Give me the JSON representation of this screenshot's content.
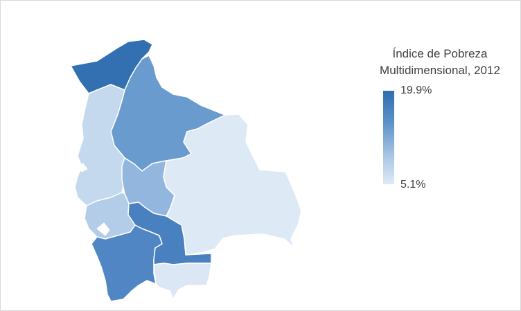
{
  "legend": {
    "title_line1": "Índice de Pobreza",
    "title_line2": "Multidimensional, 2012",
    "max_label": "19.9%",
    "min_label": "5.1%",
    "color_max": "#2e6db0",
    "color_min": "#deeaf6"
  },
  "regions": [
    {
      "id": "pando",
      "fill": "#3270b2"
    },
    {
      "id": "beni",
      "fill": "#6a9bcf"
    },
    {
      "id": "la-paz",
      "fill": "#c4d8ee"
    },
    {
      "id": "cochabamba",
      "fill": "#93b6de"
    },
    {
      "id": "oruro",
      "fill": "#b3cce8"
    },
    {
      "id": "santa-cruz",
      "fill": "#ddeaf6"
    },
    {
      "id": "chuquisaca",
      "fill": "#4880c0"
    },
    {
      "id": "potosi",
      "fill": "#4f86c3"
    },
    {
      "id": "tarija",
      "fill": "#dbe7f5"
    }
  ]
}
